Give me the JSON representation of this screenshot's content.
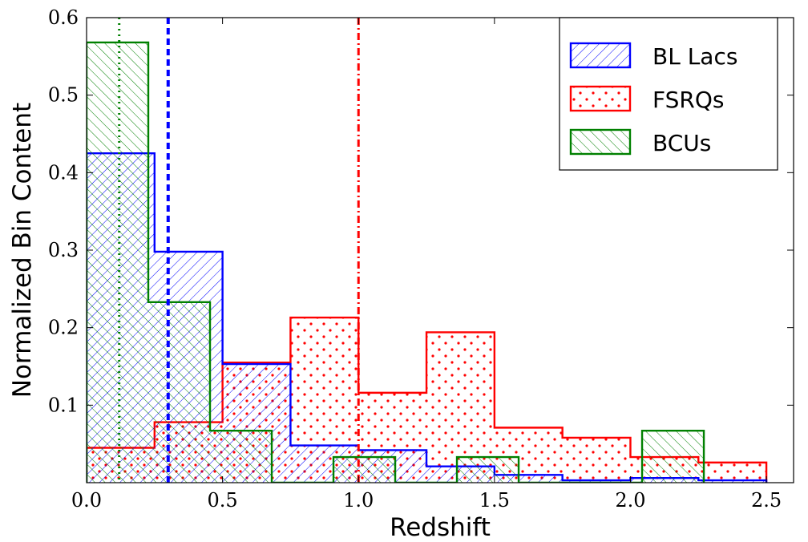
{
  "chart_data": {
    "type": "histogram",
    "xlabel": "Redshift",
    "ylabel": "Normalized Bin Content",
    "xlim": [
      0.0,
      2.6
    ],
    "ylim": [
      0.0,
      0.6
    ],
    "xticks": [
      "0.0",
      "0.5",
      "1.0",
      "1.5",
      "2.0",
      "2.5"
    ],
    "yticks": [
      "0.1",
      "0.2",
      "0.3",
      "0.4",
      "0.5",
      "0.6"
    ],
    "legend_position": "top-right",
    "series": [
      {
        "name": "FSRQs",
        "color": "#ff0000",
        "hatch": "dots",
        "bin_edges": [
          0.0,
          0.25,
          0.5,
          0.75,
          1.0,
          1.25,
          1.5,
          1.75,
          2.0,
          2.25,
          2.5
        ],
        "values": [
          0.045,
          0.078,
          0.155,
          0.213,
          0.116,
          0.194,
          0.071,
          0.058,
          0.033,
          0.026
        ],
        "marker_line": 1.0,
        "marker_style": "dashdot"
      },
      {
        "name": "BL Lacs",
        "color": "#0000ff",
        "hatch": "backslash",
        "bin_edges": [
          0.0,
          0.25,
          0.5,
          0.75,
          1.0,
          1.25,
          1.5,
          1.75,
          2.0,
          2.25,
          2.5
        ],
        "values": [
          0.425,
          0.298,
          0.153,
          0.048,
          0.042,
          0.021,
          0.01,
          0.003,
          0.006,
          0.003
        ],
        "marker_line": 0.3,
        "marker_style": "dashed"
      },
      {
        "name": "BCUs",
        "color": "#008000",
        "hatch": "slash",
        "bin_edges": [
          0.0,
          0.227,
          0.454,
          0.681,
          0.908,
          1.135,
          1.362,
          1.589,
          1.816,
          2.043,
          2.27
        ],
        "values": [
          0.568,
          0.233,
          0.067,
          0.0,
          0.033,
          0.0,
          0.033,
          0.0,
          0.0,
          0.067
        ],
        "marker_line": 0.12,
        "marker_style": "dotted"
      }
    ],
    "legend_order": [
      "BL Lacs",
      "FSRQs",
      "BCUs"
    ]
  }
}
